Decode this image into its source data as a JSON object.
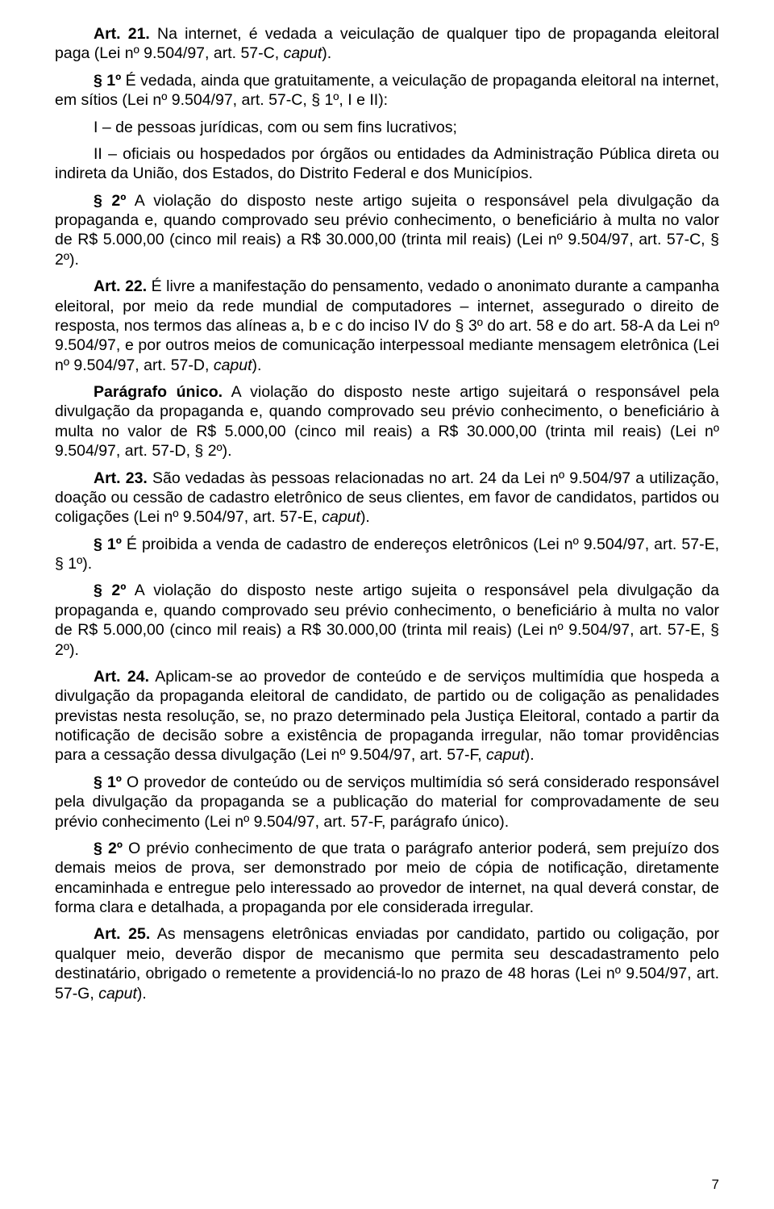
{
  "page_number": "7",
  "p": {
    "art21_lead_b": "Art. 21.",
    "art21_lead_t": " Na internet, é vedada a veiculação de qualquer tipo de propaganda eleitoral paga (Lei nº 9.504/97, art. 57-C, ",
    "art21_lead_i": "caput",
    "art21_lead_end": ").",
    "art21_s1_b": "§ 1º",
    "art21_s1_t": " É vedada, ainda que gratuitamente, a veiculação de propaganda eleitoral na internet, em sítios (Lei nº 9.504/97, art. 57-C, § 1º, I e II):",
    "art21_i": "I – de pessoas jurídicas, com ou sem fins lucrativos;",
    "art21_ii": "II – oficiais ou hospedados por órgãos ou entidades da Administração Pública direta ou indireta da União, dos Estados, do Distrito Federal e dos Municípios.",
    "art21_s2_b": "§ 2º",
    "art21_s2_t": " A violação do disposto neste artigo sujeita o responsável pela divulgação da propaganda e, quando comprovado seu prévio conhecimento, o beneficiário à multa no valor de R$ 5.000,00 (cinco mil reais) a R$ 30.000,00 (trinta mil reais) (Lei nº 9.504/97, art. 57-C, § 2º).",
    "art22_b": "Art. 22.",
    "art22_t": " É livre a manifestação do pensamento, vedado o anonimato durante a campanha eleitoral, por meio da rede mundial de computadores – internet, assegurado o direito de resposta, nos termos das alíneas a, b e c do inciso IV do § 3º do art. 58 e do art. 58-A da Lei nº 9.504/97, e por outros meios de comunicação interpessoal mediante mensagem eletrônica (Lei nº 9.504/97, art. 57-D, ",
    "art22_i": "caput",
    "art22_end": ").",
    "art22_pu_b": "Parágrafo único.",
    "art22_pu_t": " A violação do disposto neste artigo sujeitará o responsável pela divulgação da propaganda e, quando comprovado seu prévio conhecimento, o beneficiário à multa no valor de R$ 5.000,00 (cinco mil reais) a R$ 30.000,00 (trinta mil reais) (Lei nº 9.504/97, art. 57-D, § 2º).",
    "art23_b": "Art. 23.",
    "art23_t": " São vedadas às pessoas relacionadas no art. 24 da Lei nº 9.504/97 a utilização, doação ou cessão de cadastro eletrônico de seus clientes, em favor de candidatos, partidos ou coligações (Lei nº 9.504/97, art. 57-E, ",
    "art23_i": "caput",
    "art23_end": ").",
    "art23_s1_b": "§ 1º",
    "art23_s1_t": " É proibida a venda de cadastro de endereços eletrônicos (Lei nº 9.504/97, art. 57-E, § 1º).",
    "art23_s2_b": "§ 2º",
    "art23_s2_t": " A violação do disposto neste artigo sujeita o responsável pela divulgação da propaganda e, quando comprovado seu prévio conhecimento, o beneficiário à multa no valor de R$ 5.000,00 (cinco mil reais) a R$ 30.000,00 (trinta mil reais) (Lei nº 9.504/97, art. 57-E, § 2º).",
    "art24_b": "Art. 24.",
    "art24_t": " Aplicam-se ao provedor de conteúdo e de serviços multimídia que hospeda a divulgação da propaganda eleitoral de candidato, de partido ou de coligação as penalidades previstas nesta resolução, se, no prazo determinado pela Justiça Eleitoral, contado a partir da notificação de decisão sobre a existência de propaganda irregular, não tomar providências para a cessação dessa divulgação (Lei nº 9.504/97, art. 57-F, ",
    "art24_i": "caput",
    "art24_end": ").",
    "art24_s1_b": "§ 1º",
    "art24_s1_t": " O provedor de conteúdo ou de serviços multimídia só será considerado responsável pela divulgação da propaganda se a publicação do material for comprovadamente de seu prévio conhecimento (Lei nº 9.504/97, art. 57-F, parágrafo único).",
    "art24_s2_b": "§ 2º",
    "art24_s2_t": " O prévio conhecimento de que trata o parágrafo anterior poderá, sem prejuízo dos demais meios de prova, ser demonstrado por meio de cópia de notificação, diretamente encaminhada e entregue pelo interessado ao provedor de internet, na qual deverá constar, de forma clara e detalhada, a propaganda por ele considerada irregular.",
    "art25_b": "Art. 25.",
    "art25_t": " As mensagens eletrônicas enviadas por candidato, partido ou coligação, por qualquer meio, deverão dispor de mecanismo que permita seu descadastramento pelo destinatário, obrigado o remetente a providenciá-lo no prazo de 48 horas (Lei nº 9.504/97, art. 57-G, ",
    "art25_i": "caput",
    "art25_end": ")."
  }
}
